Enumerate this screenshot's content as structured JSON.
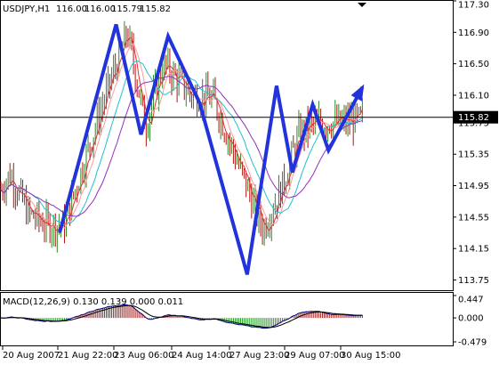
{
  "chart_data": {
    "type": "line",
    "title": "USDJPY,H1",
    "ohlc": {
      "open": "116.00",
      "high": "116.00",
      "low": "115.79",
      "close": "115.82"
    },
    "current_price": {
      "value": 115.82,
      "label": "115.82"
    },
    "price_axis": {
      "ylim": [
        113.62,
        117.3
      ],
      "ticks": [
        "117.30",
        "116.90",
        "116.50",
        "116.10",
        "115.75",
        "115.35",
        "114.95",
        "114.55",
        "114.15",
        "113.75"
      ]
    },
    "time_axis": {
      "ticks": [
        "20 Aug 2007",
        "21 Aug 22:00",
        "23 Aug 06:00",
        "24 Aug 14:00",
        "27 Aug 23:00",
        "29 Aug 07:00",
        "30 Aug 15:00"
      ]
    },
    "zigzag_pattern": {
      "color": "#2233dd",
      "points": [
        {
          "x": 0.13,
          "y": 114.35
        },
        {
          "x": 0.255,
          "y": 117.0
        },
        {
          "x": 0.31,
          "y": 115.6
        },
        {
          "x": 0.37,
          "y": 116.85
        },
        {
          "x": 0.44,
          "y": 116.0
        },
        {
          "x": 0.545,
          "y": 113.82
        },
        {
          "x": 0.61,
          "y": 116.22
        },
        {
          "x": 0.645,
          "y": 115.12
        },
        {
          "x": 0.69,
          "y": 115.98
        },
        {
          "x": 0.725,
          "y": 115.4
        },
        {
          "x": 0.8,
          "y": 116.2
        }
      ]
    },
    "macd": {
      "label": "MACD(12,26,9) 0.130 0.139 0.000 0.011",
      "ticks": [
        "0.447",
        "0.000",
        "-0.479"
      ],
      "ylim": [
        -0.55,
        0.5
      ]
    },
    "colors": {
      "bull_candle": "#2a8a2a",
      "bear_candle": "#b31414",
      "ma_fast": "#e03030",
      "ma_slow": "#ff9999",
      "ma_cyan": "#20c0d0",
      "ma_purple": "#9030c0",
      "histogram_pos": "#a02020",
      "histogram_neg": "#20a020"
    }
  }
}
